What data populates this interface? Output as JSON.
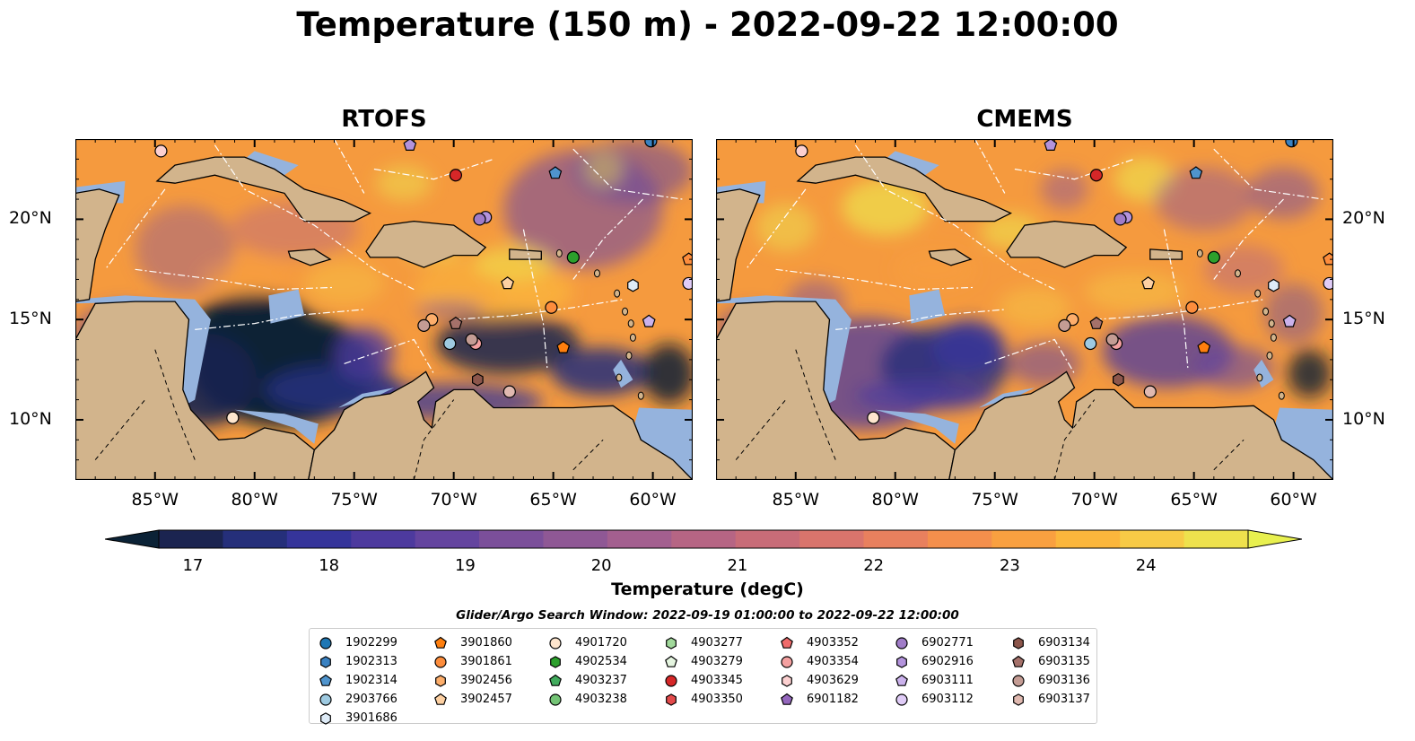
{
  "title": "Temperature (150 m) - 2022-09-22 12:00:00",
  "panels": [
    {
      "title": "RTOFS"
    },
    {
      "title": "CMEMS"
    }
  ],
  "axes": {
    "x_ticks": [
      "85°W",
      "80°W",
      "75°W",
      "70°W",
      "65°W",
      "60°W"
    ],
    "x_tick_values": [
      -85,
      -80,
      -75,
      -70,
      -65,
      -60
    ],
    "y_ticks": [
      "20°N",
      "15°N",
      "10°N"
    ],
    "y_tick_values": [
      20,
      15,
      10
    ],
    "lon_range": [
      -89,
      -58
    ],
    "lat_range": [
      7,
      24
    ]
  },
  "colorbar": {
    "label": "Temperature (degC)",
    "ticks": [
      "17",
      "18",
      "19",
      "20",
      "21",
      "22",
      "23",
      "24"
    ],
    "tick_values": [
      17,
      18,
      19,
      20,
      21,
      22,
      23,
      24
    ],
    "range": [
      16.75,
      24.75
    ],
    "extend": "both",
    "colors": [
      "#0b2236",
      "#1b2450",
      "#252f7a",
      "#35349a",
      "#4d3a9e",
      "#64449f",
      "#7b4f9a",
      "#8f5895",
      "#a35f8f",
      "#b66584",
      "#c86c78",
      "#d9746c",
      "#e8805e",
      "#f48f4c",
      "#f9a040",
      "#fbb63c",
      "#f7ca46",
      "#eee14d",
      "#e8f04f"
    ]
  },
  "search_window": "Glider/Argo Search Window: 2022-09-19 01:00:00 to 2022-09-22 12:00:00",
  "colors": {
    "land": "#d2b48c",
    "shelf": "#95b3dd",
    "warm_base": "#f59a3e"
  },
  "legend": [
    {
      "id": "1902299",
      "shape": "circle",
      "color": "#1f77b4"
    },
    {
      "id": "1902313",
      "shape": "hexagon",
      "color": "#3a82c2"
    },
    {
      "id": "1902314",
      "shape": "pentagon",
      "color": "#4f94cd"
    },
    {
      "id": "2903766",
      "shape": "circle",
      "color": "#9ecae1"
    },
    {
      "id": "3901686",
      "shape": "hexagon",
      "color": "#deebf7"
    },
    {
      "id": "3901860",
      "shape": "pentagon",
      "color": "#ff7f0e"
    },
    {
      "id": "3901861",
      "shape": "circle",
      "color": "#fd8d3c"
    },
    {
      "id": "3902456",
      "shape": "hexagon",
      "color": "#fdae6b"
    },
    {
      "id": "3902457",
      "shape": "pentagon",
      "color": "#fdd0a2"
    },
    {
      "id": "4901720",
      "shape": "circle",
      "color": "#fee6ce"
    },
    {
      "id": "4902534",
      "shape": "hexagon",
      "color": "#2ca02c"
    },
    {
      "id": "4903237",
      "shape": "pentagon",
      "color": "#41ab5d"
    },
    {
      "id": "4903238",
      "shape": "circle",
      "color": "#74c476"
    },
    {
      "id": "4903277",
      "shape": "hexagon",
      "color": "#a1d99b"
    },
    {
      "id": "4903279",
      "shape": "pentagon",
      "color": "#e5f5e0"
    },
    {
      "id": "4903345",
      "shape": "circle",
      "color": "#d62728"
    },
    {
      "id": "4903350",
      "shape": "hexagon",
      "color": "#e34a4b"
    },
    {
      "id": "4903352",
      "shape": "pentagon",
      "color": "#ef6b6b"
    },
    {
      "id": "4903354",
      "shape": "circle",
      "color": "#f4a0a0"
    },
    {
      "id": "4903629",
      "shape": "hexagon",
      "color": "#fcd0d0"
    },
    {
      "id": "6901182",
      "shape": "pentagon",
      "color": "#9467bd"
    },
    {
      "id": "6902771",
      "shape": "circle",
      "color": "#a07cc8"
    },
    {
      "id": "6902916",
      "shape": "hexagon",
      "color": "#b393dc"
    },
    {
      "id": "6903111",
      "shape": "pentagon",
      "color": "#cbb2ec"
    },
    {
      "id": "6903112",
      "shape": "circle",
      "color": "#e0ccf7"
    },
    {
      "id": "6903134",
      "shape": "hexagon",
      "color": "#8c564b"
    },
    {
      "id": "6903135",
      "shape": "pentagon",
      "color": "#a5716a"
    },
    {
      "id": "6903136",
      "shape": "circle",
      "color": "#c49c94"
    },
    {
      "id": "6903137",
      "shape": "hexagon",
      "color": "#e0b9b0"
    }
  ],
  "chart_data": {
    "type": "heatmap",
    "title": "Temperature (150 m) - 2022-09-22 12:00:00",
    "subplots": [
      "RTOFS",
      "CMEMS"
    ],
    "colorbar_label": "Temperature (degC)",
    "xlabel": "",
    "ylabel": "",
    "floats": [
      {
        "lon": -84.7,
        "lat": 23.4,
        "color": "#fcd0d0",
        "shape": "circle"
      },
      {
        "lon": -72.2,
        "lat": 23.7,
        "color": "#b393dc",
        "shape": "pentagon"
      },
      {
        "lon": -60.1,
        "lat": 23.9,
        "color": "#3a82c2",
        "shape": "circle"
      },
      {
        "lon": -69.9,
        "lat": 22.2,
        "color": "#d62728",
        "shape": "circle"
      },
      {
        "lon": -64.9,
        "lat": 22.3,
        "color": "#4f94cd",
        "shape": "pentagon"
      },
      {
        "lon": -68.4,
        "lat": 20.1,
        "color": "#b393dc",
        "shape": "circle"
      },
      {
        "lon": -68.7,
        "lat": 20.0,
        "color": "#a07cc8",
        "shape": "circle"
      },
      {
        "lon": -64.0,
        "lat": 18.1,
        "color": "#2ca02c",
        "shape": "circle"
      },
      {
        "lon": -58.2,
        "lat": 18.0,
        "color": "#fd8d3c",
        "shape": "pentagon"
      },
      {
        "lon": -67.3,
        "lat": 16.8,
        "color": "#fdd0a2",
        "shape": "pentagon"
      },
      {
        "lon": -61.0,
        "lat": 16.7,
        "color": "#deebf7",
        "shape": "hexagon"
      },
      {
        "lon": -58.2,
        "lat": 16.8,
        "color": "#e0ccf7",
        "shape": "circle"
      },
      {
        "lon": -65.1,
        "lat": 15.6,
        "color": "#fd8d3c",
        "shape": "circle"
      },
      {
        "lon": -71.1,
        "lat": 15.0,
        "color": "#fdae6b",
        "shape": "circle"
      },
      {
        "lon": -71.5,
        "lat": 14.7,
        "color": "#c49c94",
        "shape": "circle"
      },
      {
        "lon": -69.9,
        "lat": 14.8,
        "color": "#a5716a",
        "shape": "pentagon"
      },
      {
        "lon": -60.2,
        "lat": 14.9,
        "color": "#cbb2ec",
        "shape": "pentagon"
      },
      {
        "lon": -70.2,
        "lat": 13.8,
        "color": "#9ecae1",
        "shape": "circle"
      },
      {
        "lon": -68.9,
        "lat": 13.8,
        "color": "#f4a0a0",
        "shape": "circle"
      },
      {
        "lon": -69.1,
        "lat": 14.0,
        "color": "#c49c94",
        "shape": "circle"
      },
      {
        "lon": -64.5,
        "lat": 13.6,
        "color": "#ff7f0e",
        "shape": "pentagon"
      },
      {
        "lon": -68.8,
        "lat": 12.0,
        "color": "#8c564b",
        "shape": "hexagon"
      },
      {
        "lon": -67.2,
        "lat": 11.4,
        "color": "#e0b9b0",
        "shape": "circle"
      },
      {
        "lon": -81.1,
        "lat": 10.1,
        "color": "#fee6ce",
        "shape": "circle"
      }
    ]
  }
}
